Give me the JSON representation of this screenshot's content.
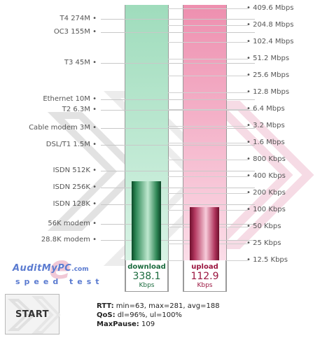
{
  "left_scale": [
    {
      "label": "T4 274M",
      "y": 27
    },
    {
      "label": "OC3 155M",
      "y": 46
    },
    {
      "label": "T3 45M",
      "y": 90
    },
    {
      "label": "Ethernet 10M",
      "y": 142
    },
    {
      "label": "T2 6.3M",
      "y": 157
    },
    {
      "label": "Cable modem 3M",
      "y": 183
    },
    {
      "label": "DSL/T1 1.5M",
      "y": 207
    },
    {
      "label": "ISDN 512K",
      "y": 244
    },
    {
      "label": "ISDN 256K",
      "y": 268
    },
    {
      "label": "ISDN 128K",
      "y": 292
    },
    {
      "label": "56K modem",
      "y": 320
    },
    {
      "label": "28.8K modem",
      "y": 343
    }
  ],
  "right_scale": [
    {
      "label": "409.6 Mbps",
      "y": 12
    },
    {
      "label": "204.8 Mbps",
      "y": 36
    },
    {
      "label": "102.4 Mbps",
      "y": 60
    },
    {
      "label": "51.2 Mbps",
      "y": 84
    },
    {
      "label": "25.6 Mbps",
      "y": 108
    },
    {
      "label": "12.8 Mbps",
      "y": 132
    },
    {
      "label": "6.4 Mbps",
      "y": 156
    },
    {
      "label": "3.2 Mbps",
      "y": 180
    },
    {
      "label": "1.6 Mbps",
      "y": 204
    },
    {
      "label": "800 Kbps",
      "y": 228
    },
    {
      "label": "400 Kbps",
      "y": 252
    },
    {
      "label": "200 Kbps",
      "y": 276
    },
    {
      "label": "100 Kbps",
      "y": 300
    },
    {
      "label": "50 Kbps",
      "y": 324
    },
    {
      "label": "25 Kbps",
      "y": 348
    },
    {
      "label": "12.5 Kbps",
      "y": 372
    }
  ],
  "download": {
    "label": "download",
    "value": "338.1",
    "unit": "Kbps"
  },
  "upload": {
    "label": "upload",
    "value": "112.9",
    "unit": "Kbps"
  },
  "brand": {
    "name": "AuditMyPC",
    "domain": ".com",
    "tagline": "speed test",
    "watermark": "e"
  },
  "start_button": {
    "label": "START"
  },
  "stats": {
    "rtt_label": "RTT:",
    "rtt_value": "min=63, max=281, avg=188",
    "qos_label": "QoS:",
    "qos_value": "dl=96%, ul=100%",
    "maxpause_label": "MaxPause:",
    "maxpause_value": "109"
  },
  "colors": {
    "download": "#1b6b3e",
    "upload": "#9b1640",
    "brand": "#5b7bd0"
  }
}
